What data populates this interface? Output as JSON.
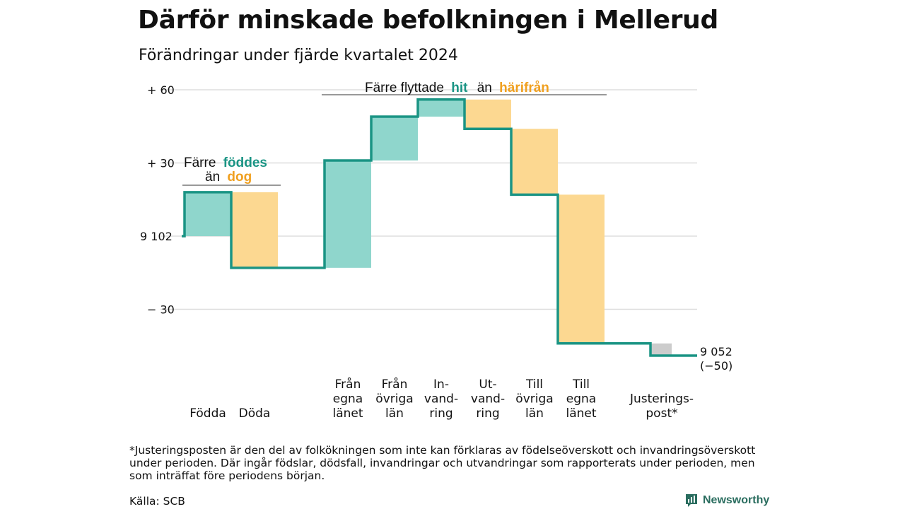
{
  "header": {
    "title": "Därför minskade befolkningen i Mellerud",
    "subtitle": "Förändringar under fjärde kvartalet 2024"
  },
  "chart_data": {
    "type": "bar",
    "subtype": "waterfall",
    "start_value": 9102,
    "end_value": 9052,
    "end_label": "9 052",
    "end_change_label": "(−50)",
    "y_ticks": [
      {
        "value": 60,
        "label": "+ 60"
      },
      {
        "value": 30,
        "label": "+ 30"
      },
      {
        "value": 0,
        "label": "9 102"
      },
      {
        "value": -30,
        "label": "− 30"
      }
    ],
    "ylim": [
      -50,
      62
    ],
    "grid": true,
    "categories": [
      {
        "id": "fodda",
        "lines": [
          "Födda"
        ],
        "value": 18,
        "kind": "in"
      },
      {
        "id": "doda",
        "lines": [
          "Döda"
        ],
        "value": -31,
        "kind": "out"
      },
      {
        "id": "fran-egna-lanet",
        "lines": [
          "Från",
          "egna",
          "länet"
        ],
        "value": 44,
        "kind": "in"
      },
      {
        "id": "fran-ovriga-lan",
        "lines": [
          "Från",
          "övriga",
          "län"
        ],
        "value": 18,
        "kind": "in"
      },
      {
        "id": "invandring",
        "lines": [
          "In-",
          "vand-",
          "ring"
        ],
        "value": 7,
        "kind": "in"
      },
      {
        "id": "utvandring",
        "lines": [
          "Ut-",
          "vand-",
          "ring"
        ],
        "value": -12,
        "kind": "out"
      },
      {
        "id": "till-ovriga-lan",
        "lines": [
          "Till",
          "övriga",
          "län"
        ],
        "value": -27,
        "kind": "out"
      },
      {
        "id": "till-egna-lanet",
        "lines": [
          "Till",
          "egna",
          "länet"
        ],
        "value": -61,
        "kind": "out"
      },
      {
        "id": "justeringspost",
        "lines": [
          "Justerings-",
          "post*"
        ],
        "value": -5,
        "kind": "adjust"
      }
    ],
    "annotations": {
      "births": {
        "prefix": "Färre",
        "highlight_in": "föddes",
        "middle": "än",
        "highlight_out": "dog"
      },
      "migration": {
        "prefix": "Färre flyttade",
        "highlight_in": "hit",
        "middle": "än",
        "highlight_out": "härifrån"
      }
    },
    "colors": {
      "in_fill": "#8fd6cc",
      "out_fill": "#fcd891",
      "adjust_fill": "#cccccc",
      "line": "#1a9484",
      "in_text": "#1a9484",
      "out_text": "#f0a020",
      "grid": "#dddddd"
    }
  },
  "footer": {
    "footnote": "*Justeringsposten är den del av folkökningen som inte kan förklaras av födelseöverskott och invandringsöverskott under perioden. Där ingår födslar, dödsfall, invandringar och utvandringar som rapporterats under perioden, men som inträffat före periodens början.",
    "source": "Källa: SCB",
    "logo_text": "Newsworthy",
    "logo_icon": "newsworthy-logo-icon"
  }
}
